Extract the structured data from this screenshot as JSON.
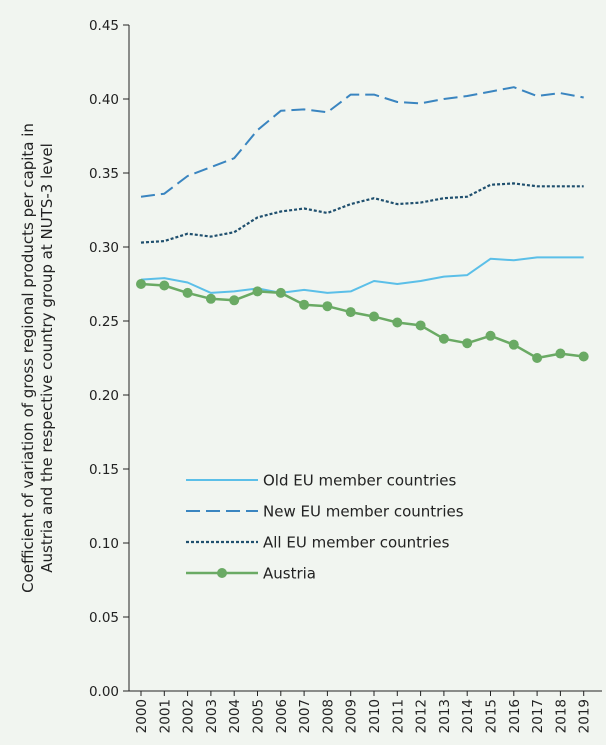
{
  "chart_data": {
    "type": "line",
    "ylabel": [
      "Coefficient of variation of gross regional products per capita in",
      "Austria and the respective country group at NUTS-3 level"
    ],
    "xlabel": "",
    "ylim": [
      0,
      0.45
    ],
    "yticks": [
      "0.00",
      "0.05",
      "0.10",
      "0.15",
      "0.20",
      "0.25",
      "0.30",
      "0.35",
      "0.40",
      "0.45"
    ],
    "x": [
      "2000",
      "2001",
      "2002",
      "2003",
      "2004",
      "2005",
      "2006",
      "2007",
      "2008",
      "2009",
      "2010",
      "2011",
      "2012",
      "2013",
      "2014",
      "2015",
      "2016",
      "2017",
      "2018",
      "2019"
    ],
    "legend_position": "lower-left",
    "series": [
      {
        "name": "Old EU member countries",
        "color": "#5bbfe8",
        "style": "solid",
        "values": [
          0.278,
          0.279,
          0.276,
          0.269,
          0.27,
          0.272,
          0.269,
          0.271,
          0.269,
          0.27,
          0.277,
          0.275,
          0.277,
          0.28,
          0.281,
          0.292,
          0.291,
          0.293,
          0.293,
          0.293
        ]
      },
      {
        "name": "New EU member countries",
        "color": "#3a85c0",
        "style": "dashed",
        "values": [
          0.334,
          0.336,
          0.348,
          0.354,
          0.36,
          0.379,
          0.392,
          0.393,
          0.391,
          0.403,
          0.403,
          0.398,
          0.397,
          0.4,
          0.402,
          0.405,
          0.408,
          0.402,
          0.404,
          0.401
        ]
      },
      {
        "name": "All EU member countries",
        "color": "#1f4f6e",
        "style": "dotted",
        "values": [
          0.303,
          0.304,
          0.309,
          0.307,
          0.31,
          0.32,
          0.324,
          0.326,
          0.323,
          0.329,
          0.333,
          0.329,
          0.33,
          0.333,
          0.334,
          0.342,
          0.343,
          0.341,
          0.341,
          0.341
        ]
      },
      {
        "name": "Austria",
        "color": "#6aaa64",
        "style": "solid-markers",
        "values": [
          0.275,
          0.274,
          0.269,
          0.265,
          0.264,
          0.27,
          0.269,
          0.261,
          0.26,
          0.256,
          0.253,
          0.249,
          0.247,
          0.238,
          0.235,
          0.24,
          0.234,
          0.225,
          0.228,
          0.226
        ]
      }
    ]
  }
}
